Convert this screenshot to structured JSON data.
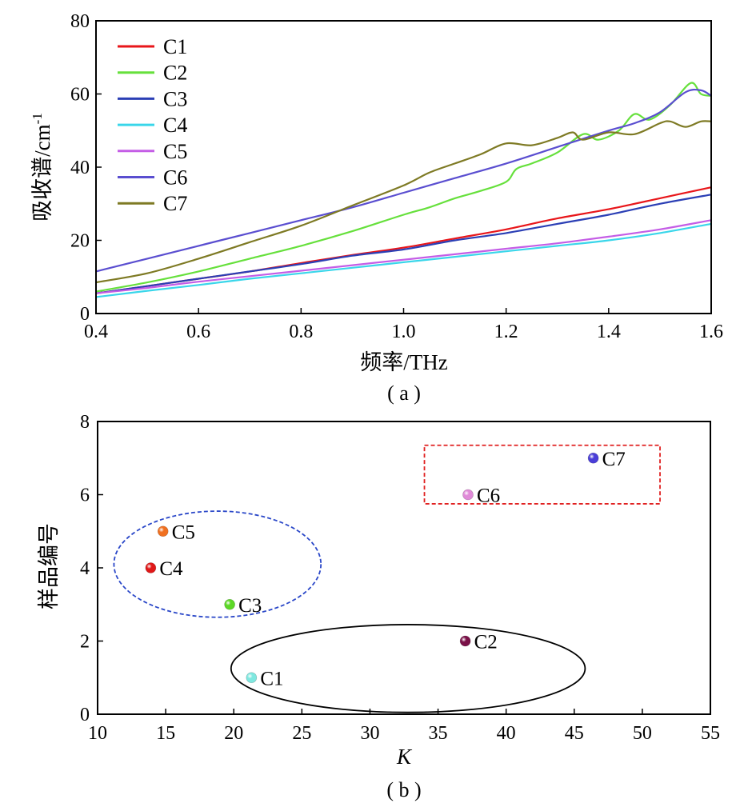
{
  "chart_data": [
    {
      "panel_label": "( a )",
      "type": "line",
      "xlabel": "频率/THz",
      "ylabel": "吸收谱/cm",
      "ylabel_superscript": "-1",
      "xlim": [
        0.4,
        1.6
      ],
      "ylim": [
        0,
        80
      ],
      "xticks": [
        "0.4",
        "0.6",
        "0.8",
        "1.0",
        "1.2",
        "1.4",
        "1.6"
      ],
      "yticks": [
        "0",
        "20",
        "40",
        "60",
        "80"
      ],
      "grid": false,
      "legend_position": "top-left",
      "series": [
        {
          "name": "C1",
          "color": "#e8161a",
          "x": [
            0.4,
            0.5,
            0.6,
            0.7,
            0.8,
            0.9,
            1.0,
            1.1,
            1.2,
            1.3,
            1.4,
            1.5,
            1.6
          ],
          "y": [
            5.5,
            7.5,
            9.5,
            11.5,
            13.8,
            16.0,
            18.0,
            20.5,
            23.0,
            26.0,
            28.5,
            31.5,
            34.5
          ]
        },
        {
          "name": "C2",
          "color": "#66e03c",
          "x": [
            0.4,
            0.5,
            0.6,
            0.7,
            0.8,
            0.9,
            1.0,
            1.05,
            1.1,
            1.15,
            1.2,
            1.22,
            1.25,
            1.3,
            1.35,
            1.38,
            1.42,
            1.45,
            1.48,
            1.52,
            1.56,
            1.58,
            1.6
          ],
          "y": [
            6.0,
            8.5,
            11.5,
            15.0,
            18.5,
            22.5,
            27.0,
            29.0,
            31.5,
            33.5,
            36.0,
            39.5,
            41.0,
            44.0,
            49.0,
            47.5,
            50.0,
            54.5,
            53.0,
            57.0,
            63.0,
            60.0,
            59.5
          ]
        },
        {
          "name": "C3",
          "color": "#2b3fb5",
          "x": [
            0.4,
            0.5,
            0.6,
            0.7,
            0.8,
            0.9,
            1.0,
            1.1,
            1.2,
            1.3,
            1.4,
            1.5,
            1.6
          ],
          "y": [
            5.5,
            7.5,
            9.5,
            11.5,
            13.5,
            15.8,
            17.5,
            20.0,
            22.0,
            24.5,
            27.0,
            30.0,
            32.5
          ]
        },
        {
          "name": "C4",
          "color": "#3ad6ea",
          "x": [
            0.4,
            0.5,
            0.6,
            0.7,
            0.8,
            0.9,
            1.0,
            1.1,
            1.2,
            1.3,
            1.4,
            1.5,
            1.6
          ],
          "y": [
            4.5,
            6.2,
            7.8,
            9.5,
            11.0,
            12.5,
            14.0,
            15.5,
            17.0,
            18.5,
            20.0,
            22.0,
            24.5
          ]
        },
        {
          "name": "C5",
          "color": "#c45de6",
          "x": [
            0.4,
            0.5,
            0.6,
            0.7,
            0.8,
            0.9,
            1.0,
            1.1,
            1.2,
            1.3,
            1.4,
            1.5,
            1.6
          ],
          "y": [
            5.5,
            7.0,
            8.7,
            10.2,
            11.7,
            13.2,
            14.7,
            16.2,
            17.7,
            19.2,
            21.0,
            23.0,
            25.5
          ]
        },
        {
          "name": "C6",
          "color": "#5a4ed0",
          "x": [
            0.4,
            0.5,
            0.6,
            0.7,
            0.8,
            0.9,
            1.0,
            1.1,
            1.2,
            1.3,
            1.4,
            1.45,
            1.5,
            1.55,
            1.58,
            1.6
          ],
          "y": [
            11.5,
            15.0,
            18.5,
            22.0,
            25.5,
            29.0,
            33.0,
            37.0,
            41.0,
            45.5,
            50.0,
            52.0,
            55.0,
            60.5,
            61.0,
            59.5
          ]
        },
        {
          "name": "C7",
          "color": "#7e7a24",
          "x": [
            0.4,
            0.5,
            0.6,
            0.7,
            0.8,
            0.9,
            1.0,
            1.05,
            1.1,
            1.15,
            1.2,
            1.25,
            1.3,
            1.33,
            1.35,
            1.4,
            1.45,
            1.5,
            1.52,
            1.55,
            1.58,
            1.6
          ],
          "y": [
            8.5,
            11.0,
            15.0,
            19.5,
            24.0,
            29.5,
            35.0,
            38.5,
            41.0,
            43.5,
            46.5,
            46.0,
            48.0,
            49.5,
            47.5,
            49.5,
            49.0,
            52.0,
            52.5,
            51.0,
            52.5,
            52.5
          ]
        }
      ]
    },
    {
      "panel_label": "( b )",
      "type": "scatter",
      "xlabel": "K",
      "ylabel": "样品编号",
      "xlim": [
        10,
        55
      ],
      "ylim": [
        0,
        8
      ],
      "xticks": [
        "10",
        "15",
        "20",
        "25",
        "30",
        "35",
        "40",
        "45",
        "50",
        "55"
      ],
      "yticks": [
        "0",
        "2",
        "4",
        "6",
        "8"
      ],
      "grid": false,
      "points": [
        {
          "label": "C1",
          "x": 21.3,
          "y": 1,
          "color": "#7fe8e0"
        },
        {
          "label": "C2",
          "x": 37.0,
          "y": 2,
          "color": "#7a1148"
        },
        {
          "label": "C3",
          "x": 19.7,
          "y": 3,
          "color": "#5cd826"
        },
        {
          "label": "C4",
          "x": 13.9,
          "y": 4,
          "color": "#e01818"
        },
        {
          "label": "C5",
          "x": 14.8,
          "y": 5,
          "color": "#f07020"
        },
        {
          "label": "C6",
          "x": 37.2,
          "y": 6,
          "color": "#e08ad8"
        },
        {
          "label": "C7",
          "x": 46.4,
          "y": 7,
          "color": "#4a3ed8"
        }
      ],
      "groups": [
        {
          "shape": "ellipse",
          "style": "dashed",
          "color": "#2a47c8",
          "cx": 18.8,
          "cy": 4.1,
          "rx": 7.6,
          "ry": 1.45
        },
        {
          "shape": "ellipse",
          "style": "solid",
          "color": "#000000",
          "cx": 32.8,
          "cy": 1.25,
          "rx": 13.0,
          "ry": 1.2
        },
        {
          "shape": "rect",
          "style": "dashed",
          "color": "#e02020",
          "x0": 34.0,
          "x1": 51.3,
          "y0": 5.75,
          "y1": 7.35
        }
      ]
    }
  ]
}
